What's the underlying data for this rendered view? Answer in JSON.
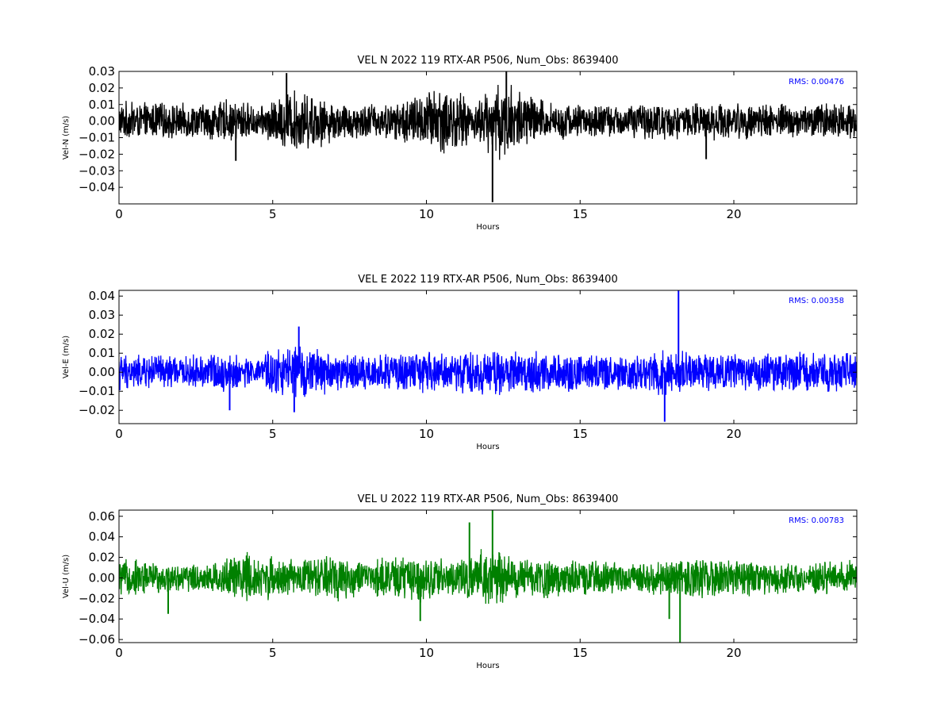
{
  "chart_data": [
    {
      "type": "line",
      "title": "VEL N 2022 119 RTX-AR  P506, Num_Obs: 8639400",
      "xlabel": "Hours",
      "ylabel": "Vel-N (m/s)",
      "xlim": [
        0,
        24
      ],
      "ylim": [
        -0.05,
        0.03
      ],
      "xticks": [
        0,
        5,
        10,
        15,
        20
      ],
      "xtick_labels": [
        "0",
        "5",
        "10",
        "15",
        "20"
      ],
      "yticks": [
        -0.04,
        -0.03,
        -0.02,
        -0.01,
        0.0,
        0.01,
        0.02,
        0.03
      ],
      "ytick_labels": [
        "−0.04",
        "−0.03",
        "−0.02",
        "−0.01",
        "0.00",
        "0.01",
        "0.02",
        "0.03"
      ],
      "rms_label": "RMS:  0.00476",
      "color": "#000000",
      "rms_color": "#0000ff",
      "grid": false,
      "series": [
        {
          "x": [
            0,
            1,
            2,
            3,
            4,
            4.6,
            5.5,
            6.5,
            7,
            8,
            9,
            10,
            10.5,
            11,
            11.5,
            12,
            12.5,
            13,
            13.5,
            14,
            15,
            16,
            17,
            18,
            19,
            20,
            21,
            22,
            23,
            24
          ],
          "env": [
            0.013,
            0.012,
            0.011,
            0.013,
            0.014,
            0.009,
            0.02,
            0.017,
            0.013,
            0.011,
            0.012,
            0.02,
            0.024,
            0.02,
            0.012,
            0.02,
            0.027,
            0.022,
            0.016,
            0.012,
            0.011,
            0.011,
            0.012,
            0.012,
            0.012,
            0.012,
            0.012,
            0.011,
            0.012,
            0.012
          ],
          "spikes": [
            [
              5.45,
              0.029
            ],
            [
              12.15,
              -0.049
            ],
            [
              12.6,
              0.03
            ],
            [
              19.1,
              -0.023
            ],
            [
              3.8,
              -0.024
            ]
          ]
        }
      ]
    },
    {
      "type": "line",
      "title": "VEL E 2022 119 RTX-AR  P506, Num_Obs: 8639400",
      "xlabel": "Hours",
      "ylabel": "Vel-E (m/s)",
      "xlim": [
        0,
        24
      ],
      "ylim": [
        -0.027,
        0.043
      ],
      "xticks": [
        0,
        5,
        10,
        15,
        20
      ],
      "xtick_labels": [
        "0",
        "5",
        "10",
        "15",
        "20"
      ],
      "yticks": [
        -0.02,
        -0.01,
        0.0,
        0.01,
        0.02,
        0.03,
        0.04
      ],
      "ytick_labels": [
        "−0.02",
        "−0.01",
        "0.00",
        "0.01",
        "0.02",
        "0.03",
        "0.04"
      ],
      "rms_label": "RMS:  0.00358",
      "color": "#0000ff",
      "rms_color": "#0000ff",
      "grid": false,
      "series": [
        {
          "x": [
            0,
            1,
            2,
            3,
            4,
            4.4,
            5,
            6,
            7,
            8,
            9,
            10,
            11,
            12,
            13,
            14,
            15,
            16,
            17,
            17.8,
            18.5,
            19,
            20,
            21,
            22,
            23,
            24
          ],
          "env": [
            0.011,
            0.01,
            0.009,
            0.011,
            0.01,
            0.006,
            0.014,
            0.015,
            0.011,
            0.01,
            0.011,
            0.012,
            0.011,
            0.013,
            0.012,
            0.012,
            0.011,
            0.011,
            0.011,
            0.014,
            0.012,
            0.011,
            0.011,
            0.011,
            0.011,
            0.011,
            0.011
          ],
          "spikes": [
            [
              18.2,
              0.043
            ],
            [
              17.75,
              -0.026
            ],
            [
              5.85,
              0.024
            ],
            [
              3.6,
              -0.02
            ],
            [
              5.7,
              -0.021
            ]
          ]
        }
      ]
    },
    {
      "type": "line",
      "title": "VEL U 2022 119 RTX-AR  P506, Num_Obs: 8639400",
      "xlabel": "Hours",
      "ylabel": "Vel-U (m/s)",
      "xlim": [
        0,
        24
      ],
      "ylim": [
        -0.063,
        0.066
      ],
      "xticks": [
        0,
        5,
        10,
        15,
        20
      ],
      "xtick_labels": [
        "0",
        "5",
        "10",
        "15",
        "20"
      ],
      "yticks": [
        -0.06,
        -0.04,
        -0.02,
        0.0,
        0.02,
        0.04,
        0.06
      ],
      "ytick_labels": [
        "−0.06",
        "−0.04",
        "−0.02",
        "0.00",
        "0.02",
        "0.04",
        "0.06"
      ],
      "rms_label": "RMS:  0.00783",
      "color": "#008000",
      "rms_color": "#0000ff",
      "grid": false,
      "series": [
        {
          "x": [
            0,
            1,
            2,
            3,
            4,
            5,
            6,
            7,
            8,
            9,
            10,
            11,
            12,
            13,
            14,
            15,
            16,
            17,
            18,
            19,
            20,
            21,
            22,
            23,
            24
          ],
          "env": [
            0.02,
            0.018,
            0.014,
            0.017,
            0.028,
            0.022,
            0.018,
            0.027,
            0.016,
            0.025,
            0.024,
            0.019,
            0.032,
            0.022,
            0.021,
            0.018,
            0.017,
            0.016,
            0.02,
            0.022,
            0.02,
            0.018,
            0.017,
            0.018,
            0.018
          ],
          "spikes": [
            [
              12.15,
              0.066
            ],
            [
              18.25,
              -0.063
            ],
            [
              11.4,
              0.054
            ],
            [
              17.9,
              -0.04
            ],
            [
              1.6,
              -0.035
            ],
            [
              9.8,
              -0.042
            ]
          ]
        }
      ]
    }
  ]
}
